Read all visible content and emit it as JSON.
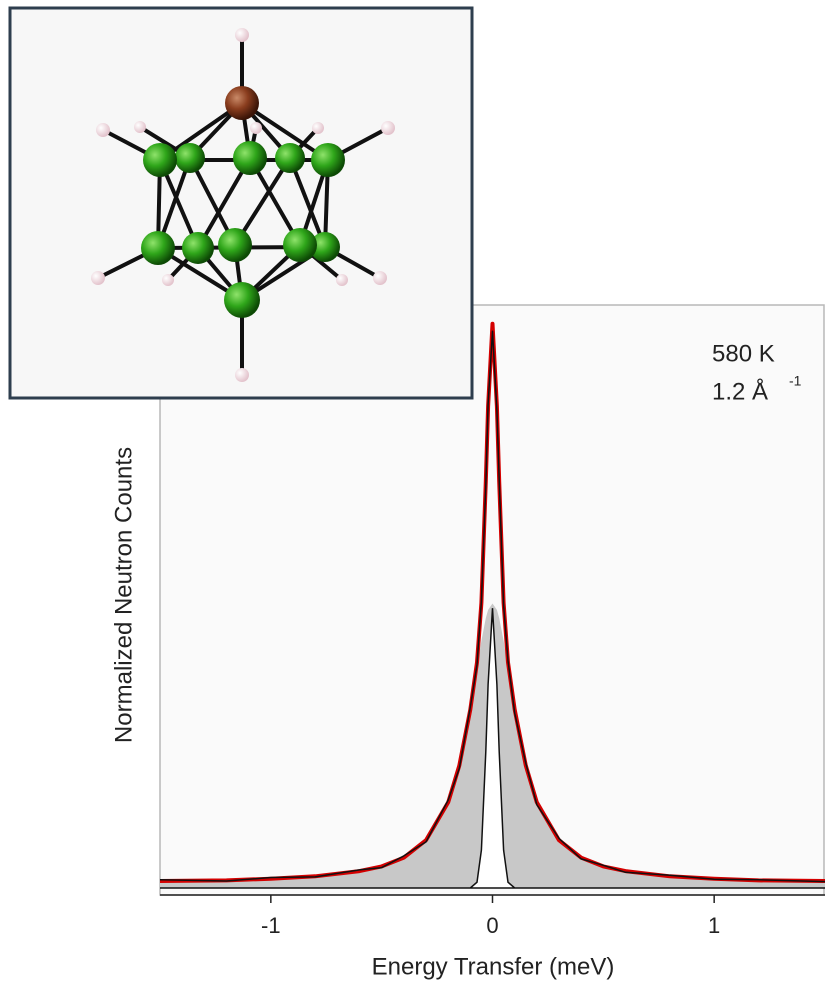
{
  "chart_data": {
    "type": "line",
    "x_label": "Energy Transfer (meV)",
    "y_label": "Normalized Neutron Counts",
    "annotations": [
      "580 K",
      "1.2 Å",
      "-1"
    ],
    "x": [
      -1.5,
      -1.2,
      -1,
      -0.8,
      -0.6,
      -0.5,
      -0.4,
      -0.3,
      -0.2,
      -0.15,
      -0.1,
      -0.07,
      -0.05,
      -0.03,
      -0.02,
      0,
      0.02,
      0.03,
      0.05,
      0.07,
      0.1,
      0.15,
      0.2,
      0.3,
      0.4,
      0.5,
      0.6,
      0.8,
      1,
      1.2,
      1.5
    ],
    "xlim": [
      -1.5,
      1.5
    ],
    "xticks": [
      -1,
      0,
      1
    ],
    "ylim": [
      0,
      1
    ],
    "series": [
      {
        "color": "#c8c8c8",
        "style": "area",
        "values": [
          0.012,
          0.013,
          0.016,
          0.02,
          0.029,
          0.037,
          0.052,
          0.082,
          0.147,
          0.21,
          0.306,
          0.377,
          0.424,
          0.463,
          0.477,
          0.488,
          0.477,
          0.463,
          0.424,
          0.377,
          0.306,
          0.21,
          0.147,
          0.082,
          0.052,
          0.037,
          0.029,
          0.02,
          0.016,
          0.013,
          0.012
        ]
      },
      {
        "color": "#ffffff",
        "style": "outlined-area",
        "values": [
          0,
          0,
          0,
          0,
          0,
          0,
          0,
          0,
          0,
          0,
          0,
          0.01,
          0.065,
          0.234,
          0.349,
          0.48,
          0.349,
          0.234,
          0.065,
          0.01,
          0,
          0,
          0,
          0,
          0,
          0,
          0,
          0,
          0,
          0,
          0
        ]
      },
      {
        "color": "#d40000",
        "style": "thick-line",
        "values": [
          0.012,
          0.013,
          0.016,
          0.02,
          0.029,
          0.037,
          0.052,
          0.082,
          0.147,
          0.21,
          0.306,
          0.387,
          0.489,
          0.697,
          0.826,
          0.968,
          0.826,
          0.697,
          0.489,
          0.387,
          0.306,
          0.21,
          0.147,
          0.082,
          0.052,
          0.037,
          0.029,
          0.02,
          0.016,
          0.013,
          0.012
        ]
      },
      {
        "color": "#111111",
        "style": "line",
        "values": [
          0.014,
          0.012,
          0.018,
          0.019,
          0.031,
          0.035,
          0.055,
          0.079,
          0.151,
          0.205,
          0.31,
          0.383,
          0.492,
          0.69,
          0.83,
          0.955,
          0.82,
          0.7,
          0.485,
          0.39,
          0.3,
          0.214,
          0.143,
          0.085,
          0.05,
          0.039,
          0.027,
          0.022,
          0.015,
          0.014,
          0.011
        ]
      }
    ]
  }
}
